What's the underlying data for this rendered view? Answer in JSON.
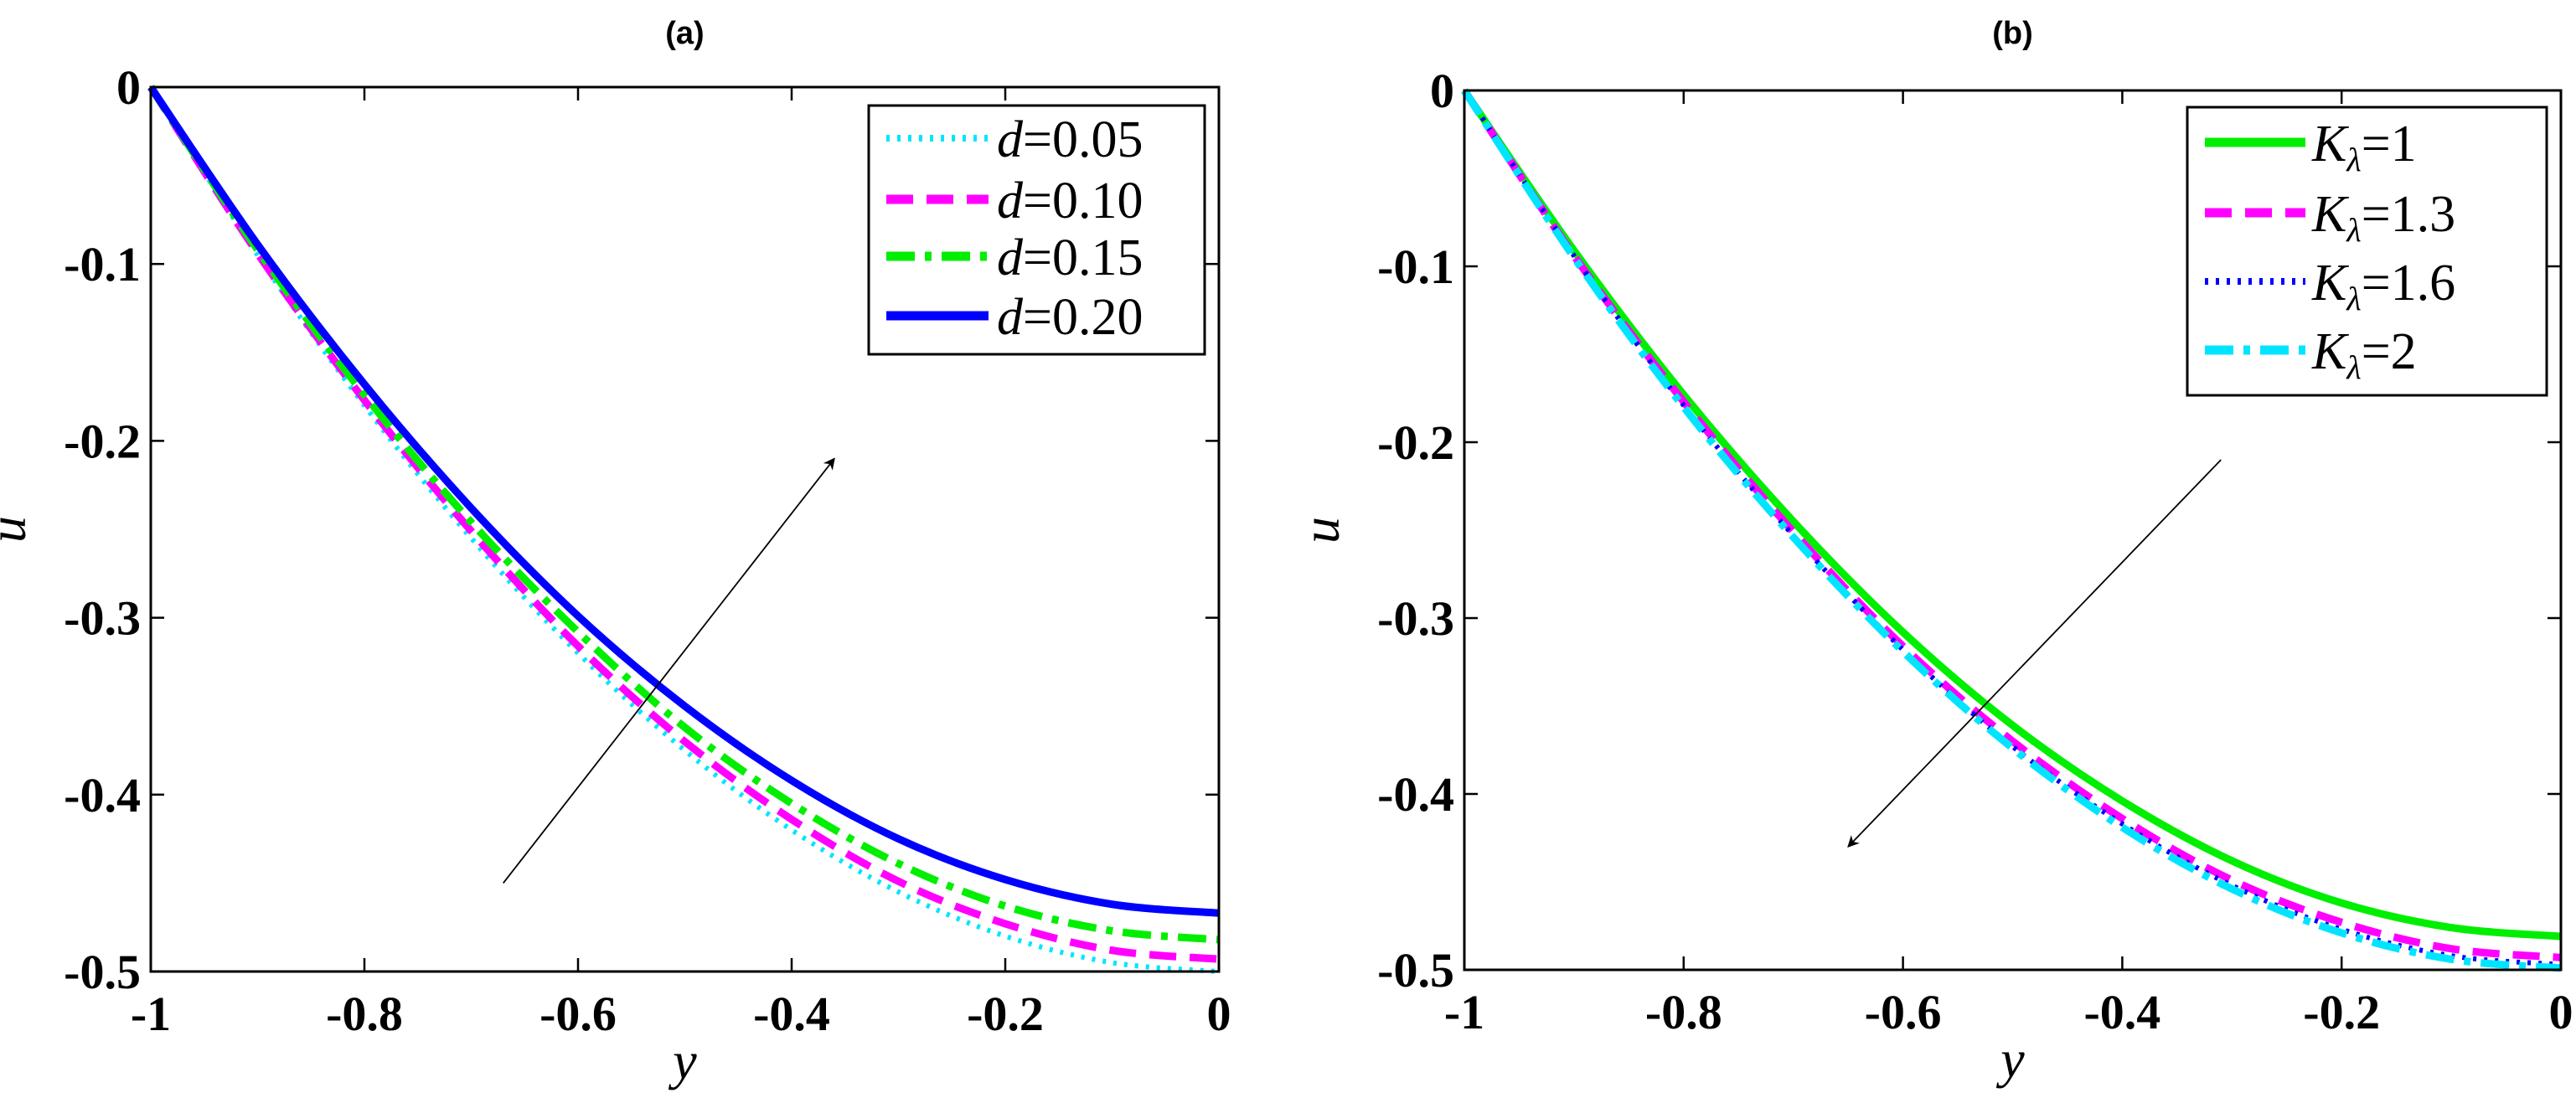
{
  "chart_data": [
    {
      "type": "line",
      "title": "(a)",
      "xlabel": "y",
      "ylabel": "u",
      "xlim": [
        -1,
        0
      ],
      "ylim": [
        -0.5,
        0
      ],
      "xticks": [
        "-1",
        "-0.8",
        "-0.6",
        "-0.4",
        "-0.2",
        "0"
      ],
      "yticks": [
        "0",
        "-0.1",
        "-0.2",
        "-0.3",
        "-0.4",
        "-0.5"
      ],
      "grid": false,
      "legend": "top-right",
      "x": [
        -1,
        -0.9,
        -0.8,
        -0.7,
        -0.6,
        -0.5,
        -0.4,
        -0.3,
        -0.2,
        -0.1,
        0
      ],
      "series": [
        {
          "name": "d=0.05",
          "style": "dotted",
          "color": "#00e5ff",
          "values": [
            0,
            -0.095,
            -0.18,
            -0.255,
            -0.32,
            -0.375,
            -0.42,
            -0.455,
            -0.48,
            -0.495,
            -0.5
          ]
        },
        {
          "name": "d=0.10",
          "style": "dashed",
          "color": "#ff00ff",
          "values": [
            0,
            -0.094,
            -0.177,
            -0.251,
            -0.316,
            -0.37,
            -0.414,
            -0.449,
            -0.473,
            -0.488,
            -0.493
          ]
        },
        {
          "name": "d=0.15",
          "style": "dashdot",
          "color": "#00ee00",
          "values": [
            0,
            -0.092,
            -0.174,
            -0.246,
            -0.308,
            -0.362,
            -0.405,
            -0.439,
            -0.463,
            -0.477,
            -0.482
          ]
        },
        {
          "name": "d=0.20",
          "style": "solid",
          "color": "#0000ff",
          "values": [
            0,
            -0.089,
            -0.168,
            -0.238,
            -0.299,
            -0.35,
            -0.392,
            -0.425,
            -0.448,
            -0.462,
            -0.467
          ]
        }
      ],
      "annotation_arrow": {
        "from": [
          -0.67,
          -0.45
        ],
        "to": [
          -0.36,
          -0.21
        ],
        "meaning": "increasing"
      }
    },
    {
      "type": "line",
      "title": "(b)",
      "xlabel": "y",
      "ylabel": "u",
      "xlim": [
        -1,
        0
      ],
      "ylim": [
        -0.5,
        0
      ],
      "xticks": [
        "-1",
        "-0.8",
        "-0.6",
        "-0.4",
        "-0.2",
        "0"
      ],
      "yticks": [
        "0",
        "-0.1",
        "-0.2",
        "-0.3",
        "-0.4",
        "-0.5"
      ],
      "grid": false,
      "legend": "top-right",
      "x": [
        -1,
        -0.9,
        -0.8,
        -0.7,
        -0.6,
        -0.5,
        -0.4,
        -0.3,
        -0.2,
        -0.1,
        0
      ],
      "series": [
        {
          "name": "Kλ=1",
          "style": "solid",
          "color": "#00ee00",
          "values": [
            0,
            -0.091,
            -0.173,
            -0.245,
            -0.308,
            -0.361,
            -0.404,
            -0.438,
            -0.462,
            -0.476,
            -0.481
          ]
        },
        {
          "name": "Kλ=1.3",
          "style": "dashed",
          "color": "#ff00ff",
          "values": [
            0,
            -0.094,
            -0.177,
            -0.251,
            -0.316,
            -0.37,
            -0.414,
            -0.449,
            -0.473,
            -0.488,
            -0.493
          ]
        },
        {
          "name": "Kλ=1.6",
          "style": "dotted",
          "color": "#0000ff",
          "values": [
            0,
            -0.094,
            -0.179,
            -0.253,
            -0.318,
            -0.373,
            -0.417,
            -0.452,
            -0.477,
            -0.492,
            -0.497
          ]
        },
        {
          "name": "Kλ=2",
          "style": "dashdot",
          "color": "#00e5ff",
          "values": [
            0,
            -0.095,
            -0.18,
            -0.254,
            -0.319,
            -0.374,
            -0.419,
            -0.454,
            -0.479,
            -0.494,
            -0.499
          ]
        }
      ],
      "annotation_arrow": {
        "from": [
          -0.31,
          -0.21
        ],
        "to": [
          -0.65,
          -0.43
        ],
        "meaning": "decreasing"
      }
    }
  ]
}
